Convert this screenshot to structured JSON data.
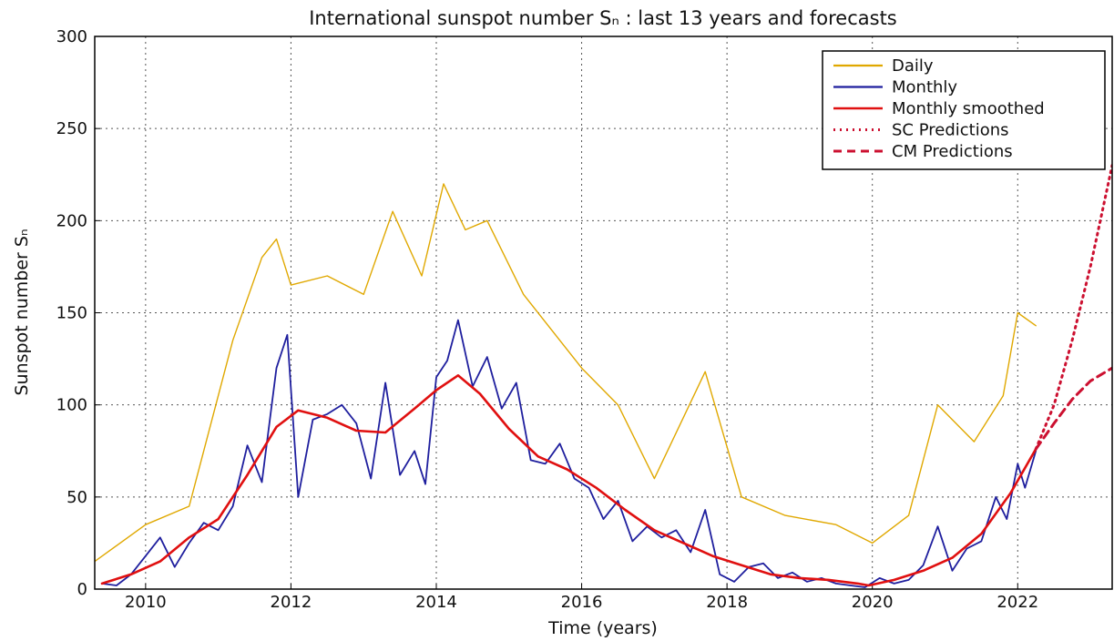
{
  "chart_data": {
    "type": "line",
    "title": "International sunspot number Sₙ : last 13 years and forecasts",
    "xlabel": "Time (years)",
    "ylabel": "Sunspot number Sₙ",
    "xlim": [
      2009.3,
      2023.3
    ],
    "ylim": [
      0,
      300
    ],
    "x_ticks": [
      2010,
      2012,
      2014,
      2016,
      2018,
      2020,
      2022
    ],
    "y_ticks": [
      0,
      50,
      100,
      150,
      200,
      250,
      300
    ],
    "grid": true,
    "legend_position": "top-right",
    "colors": {
      "daily": "#e0a800",
      "monthly": "#1f1f9e",
      "smoothed": "#e01010",
      "sc_pred": "#cc1030",
      "cm_pred": "#cc1030"
    },
    "series": [
      {
        "name": "Daily",
        "style": "solid",
        "note_visual": "dense noisy daily values spanning roughly 0 to 220",
        "x": [
          2009.3,
          2010.0,
          2010.6,
          2011.2,
          2011.6,
          2011.8,
          2012.0,
          2012.5,
          2013.0,
          2013.4,
          2013.8,
          2014.1,
          2014.4,
          2014.7,
          2015.2,
          2015.6,
          2016.0,
          2016.5,
          2017.0,
          2017.7,
          2018.2,
          2018.8,
          2019.5,
          2020.0,
          2020.5,
          2020.9,
          2021.4,
          2021.8,
          2022.0,
          2022.25
        ],
        "values": [
          15,
          35,
          45,
          135,
          180,
          190,
          165,
          170,
          160,
          205,
          170,
          220,
          195,
          200,
          160,
          140,
          120,
          100,
          60,
          118,
          50,
          40,
          35,
          25,
          40,
          100,
          80,
          105,
          150,
          143
        ]
      },
      {
        "name": "Monthly",
        "style": "solid",
        "x": [
          2009.4,
          2009.6,
          2009.8,
          2010.0,
          2010.2,
          2010.4,
          2010.6,
          2010.8,
          2011.0,
          2011.2,
          2011.4,
          2011.6,
          2011.8,
          2011.95,
          2012.1,
          2012.3,
          2012.5,
          2012.7,
          2012.9,
          2013.1,
          2013.3,
          2013.5,
          2013.7,
          2013.85,
          2014.0,
          2014.15,
          2014.3,
          2014.5,
          2014.7,
          2014.9,
          2015.1,
          2015.3,
          2015.5,
          2015.7,
          2015.9,
          2016.1,
          2016.3,
          2016.5,
          2016.7,
          2016.9,
          2017.1,
          2017.3,
          2017.5,
          2017.7,
          2017.9,
          2018.1,
          2018.3,
          2018.5,
          2018.7,
          2018.9,
          2019.1,
          2019.3,
          2019.5,
          2019.7,
          2019.9,
          2020.1,
          2020.3,
          2020.5,
          2020.7,
          2020.9,
          2021.1,
          2021.3,
          2021.5,
          2021.7,
          2021.85,
          2022.0,
          2022.1,
          2022.25
        ],
        "values": [
          3,
          2,
          8,
          18,
          28,
          12,
          25,
          36,
          32,
          45,
          78,
          58,
          120,
          138,
          50,
          92,
          95,
          100,
          90,
          60,
          112,
          62,
          75,
          57,
          115,
          124,
          146,
          110,
          126,
          98,
          112,
          70,
          68,
          79,
          60,
          55,
          38,
          48,
          26,
          34,
          28,
          32,
          20,
          43,
          8,
          4,
          12,
          14,
          6,
          9,
          4,
          6,
          3,
          2,
          1,
          6,
          3,
          5,
          13,
          34,
          10,
          22,
          26,
          50,
          38,
          68,
          55,
          75
        ]
      },
      {
        "name": "Monthly smoothed",
        "style": "solid",
        "x": [
          2009.4,
          2009.8,
          2010.2,
          2010.6,
          2011.0,
          2011.4,
          2011.8,
          2012.1,
          2012.5,
          2012.9,
          2013.3,
          2013.7,
          2014.0,
          2014.3,
          2014.6,
          2015.0,
          2015.4,
          2015.8,
          2016.2,
          2016.6,
          2017.0,
          2017.4,
          2017.8,
          2018.2,
          2018.6,
          2019.0,
          2019.4,
          2019.8,
          2019.95,
          2020.3,
          2020.7,
          2021.1,
          2021.5,
          2021.9,
          2022.25
        ],
        "values": [
          3,
          8,
          15,
          28,
          38,
          62,
          88,
          97,
          93,
          86,
          85,
          98,
          108,
          116,
          106,
          87,
          72,
          65,
          55,
          43,
          32,
          25,
          18,
          13,
          8,
          6,
          5,
          3,
          2,
          5,
          10,
          17,
          30,
          52,
          76
        ]
      },
      {
        "name": "SC Predictions",
        "style": "dotted",
        "x": [
          2022.25,
          2022.5,
          2022.75,
          2023.0,
          2023.3
        ],
        "values": [
          76,
          100,
          135,
          175,
          230
        ]
      },
      {
        "name": "CM Predictions",
        "style": "dashed",
        "x": [
          2022.25,
          2022.5,
          2022.75,
          2023.0,
          2023.3
        ],
        "values": [
          76,
          90,
          103,
          113,
          120
        ]
      }
    ]
  }
}
